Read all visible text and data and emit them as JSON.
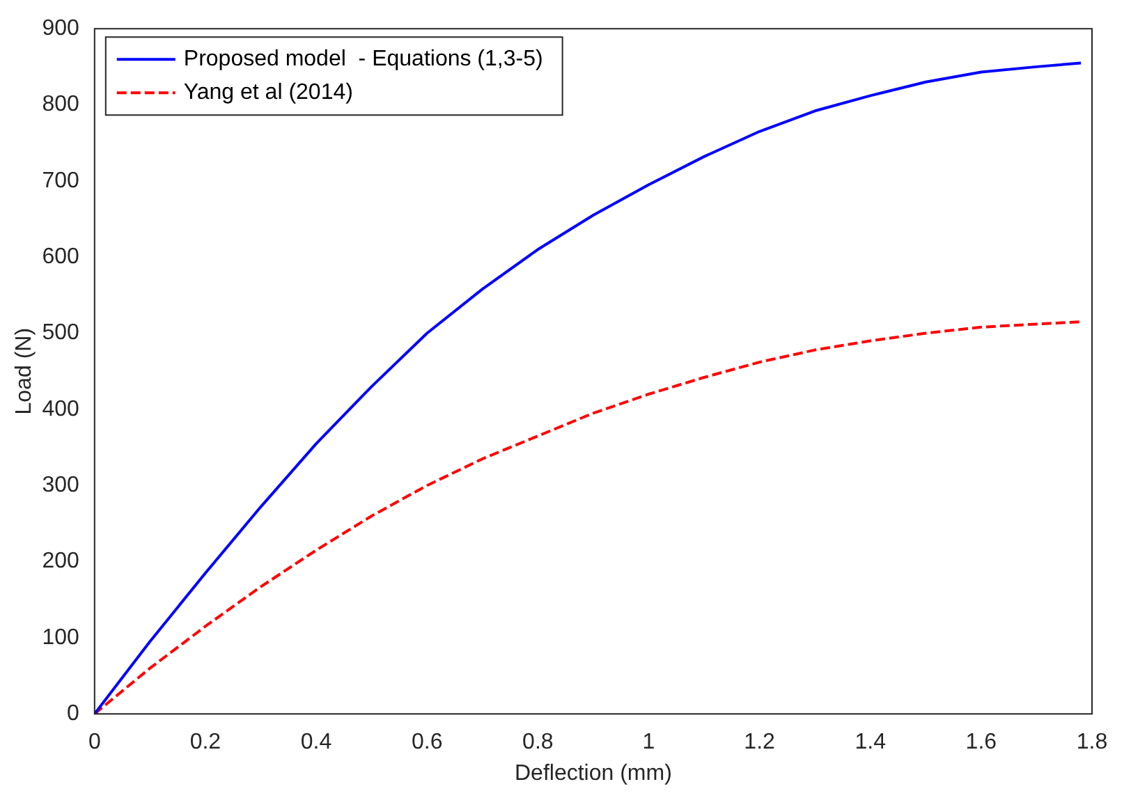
{
  "chart_data": {
    "type": "line",
    "xlabel": "Deflection (mm)",
    "ylabel": "Load (N)",
    "xlim": [
      0,
      1.8
    ],
    "xticks": [
      0,
      0.2,
      0.4,
      0.6,
      0.8,
      1,
      1.2,
      1.4,
      1.6,
      1.8
    ],
    "ylim": [
      0,
      900
    ],
    "yticks": [
      0,
      100,
      200,
      300,
      400,
      500,
      600,
      700,
      800,
      900
    ],
    "grid": false,
    "legend": "top left",
    "marker": "none",
    "series": [
      {
        "name": "Proposed model  - Equations (1,3-5)",
        "color": "#0000ff",
        "line_style": "solid",
        "x": [
          0,
          0.1,
          0.2,
          0.3,
          0.4,
          0.5,
          0.6,
          0.7,
          0.8,
          0.9,
          1,
          1.1,
          1.2,
          1.3,
          1.4,
          1.5,
          1.6,
          1.7,
          1.78
        ],
        "values": [
          0,
          95,
          185,
          272,
          355,
          430,
          500,
          558,
          610,
          655,
          695,
          732,
          765,
          792,
          812,
          830,
          843,
          850,
          855
        ]
      },
      {
        "name": "Yang et al (2014)",
        "color": "#ff0000",
        "line_style": "dashed",
        "x": [
          0,
          0.1,
          0.2,
          0.3,
          0.4,
          0.5,
          0.6,
          0.7,
          0.8,
          0.9,
          1,
          1.1,
          1.2,
          1.3,
          1.4,
          1.5,
          1.6,
          1.7,
          1.78
        ],
        "values": [
          0,
          60,
          115,
          167,
          215,
          260,
          300,
          335,
          365,
          395,
          420,
          442,
          462,
          478,
          490,
          500,
          508,
          512,
          515
        ]
      }
    ]
  }
}
